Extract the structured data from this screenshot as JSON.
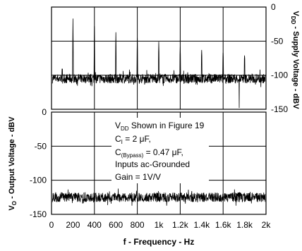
{
  "chart_data": [
    {
      "type": "line",
      "panel": "top",
      "ylabel_main": "V",
      "ylabel_sub": "DD",
      "ylabel_rest": " - Supply Voltage - dBV",
      "yticks": [
        "0",
        "-50",
        "-100",
        "-150"
      ],
      "ylim": [
        -150,
        0
      ],
      "xlim": [
        0,
        2000
      ],
      "baseline_level": -105,
      "spikes": [
        {
          "x": 100,
          "y": -100
        },
        {
          "x": 200,
          "y": -17
        },
        {
          "x": 400,
          "y": -28
        },
        {
          "x": 600,
          "y": -37
        },
        {
          "x": 800,
          "y": -45
        },
        {
          "x": 1000,
          "y": -51
        },
        {
          "x": 1200,
          "y": -58
        },
        {
          "x": 1400,
          "y": -63
        },
        {
          "x": 1600,
          "y": -67
        },
        {
          "x": 1800,
          "y": -71
        }
      ],
      "deep_dip": {
        "x": 1750,
        "y": -148
      }
    },
    {
      "type": "line",
      "panel": "bottom",
      "ylabel_main": "V",
      "ylabel_sub": "O",
      "ylabel_rest": " - Output Voltage - dBV",
      "yticks": [
        "0",
        "-50",
        "-100",
        "-150"
      ],
      "ylim": [
        -150,
        0
      ],
      "xlim": [
        0,
        2000
      ],
      "baseline_level": -125,
      "xlabel": "f - Frequency - Hz",
      "xticks": [
        "0",
        "200",
        "400",
        "600",
        "800",
        "1k",
        "1.2k",
        "1.4k",
        "1.6k",
        "1.8k",
        "2k"
      ]
    }
  ],
  "annotation": {
    "line1_main": "V",
    "line1_sub": "DD",
    "line1_rest": " Shown in Figure 19",
    "line2_main": "C",
    "line2_sub": "I",
    "line2_rest": " = 2 μF,",
    "line3_main": "C",
    "line3_sub": "(Bypass)",
    "line3_rest": " = 0.47 μF,",
    "line4": "Inputs ac-Grounded",
    "line5": "Gain = 1V/V"
  },
  "colors": {
    "trace": "#000000",
    "grid": "#000000",
    "background": "#ffffff"
  }
}
